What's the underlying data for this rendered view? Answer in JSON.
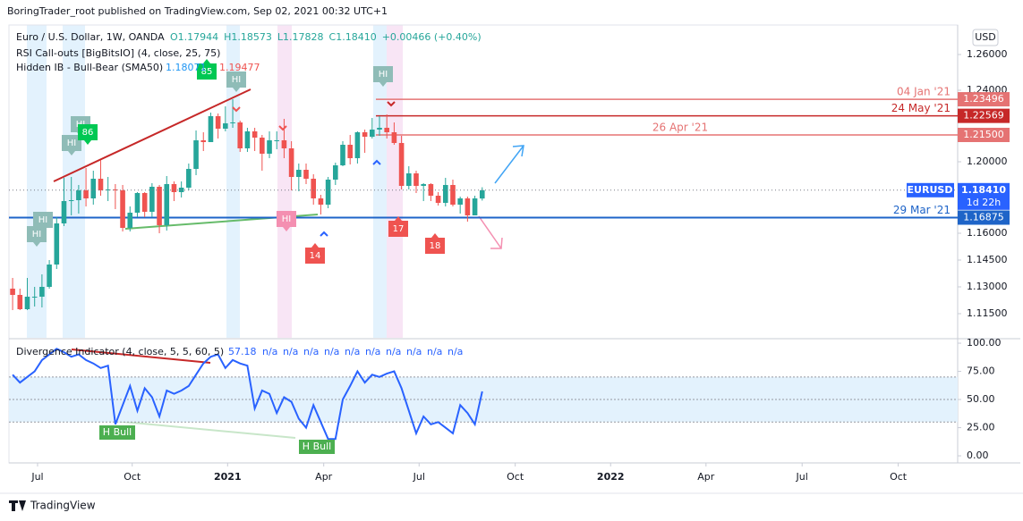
{
  "header": {
    "publisher": "BoringTrader_root published on TradingView.com, Sep 02, 2021 00:32 UTC+1",
    "symbol": "Euro / U.S. Dollar, 1W, OANDA",
    "ohlc": [
      "O1.17944",
      "H1.18573",
      "L1.17828",
      "C1.18410",
      "+0.00466 (+0.40%)"
    ],
    "indicator1": "RSI Call-outs [BigBitsIO] (4, close, 25, 75)",
    "indicator2": "Hidden IB - Bull-Bear (SMA50)",
    "indicator2_values": [
      "1.18071",
      "1.19477"
    ],
    "currency": "USD",
    "footer": "TradingView"
  },
  "chart_data": {
    "type": "candlestick",
    "open": [
      1.129,
      1.1255,
      1.1175,
      1.1245,
      1.1245,
      1.13,
      1.1425,
      1.1655,
      1.178,
      1.1785,
      1.184,
      1.1795,
      1.1905,
      1.184,
      1.1845,
      1.184,
      1.163,
      1.1715,
      1.1825,
      1.172,
      1.186,
      1.1645,
      1.1875,
      1.183,
      1.1855,
      1.196,
      1.212,
      1.211,
      1.2255,
      1.2185,
      1.2215,
      1.222,
      1.2075,
      1.217,
      1.2135,
      1.2045,
      1.212,
      1.212,
      1.2075,
      1.1915,
      1.1955,
      1.1905,
      1.1795,
      1.176,
      1.19,
      1.198,
      1.2095,
      1.202,
      1.2165,
      1.214,
      1.218,
      1.219,
      1.2165,
      1.2105,
      1.1865,
      1.1935,
      1.1865,
      1.1875,
      1.181,
      1.177,
      1.187,
      1.176,
      1.1795,
      1.17,
      1.17944
    ],
    "high": [
      1.135,
      1.129,
      1.135,
      1.13,
      1.137,
      1.145,
      1.169,
      1.191,
      1.1915,
      1.187,
      1.1965,
      1.195,
      1.201,
      1.1915,
      1.1875,
      1.187,
      1.175,
      1.183,
      1.183,
      1.188,
      1.187,
      1.192,
      1.189,
      1.189,
      1.199,
      1.2175,
      1.2165,
      1.2275,
      1.227,
      1.231,
      1.235,
      1.223,
      1.219,
      1.219,
      1.215,
      1.217,
      1.217,
      1.224,
      1.2115,
      1.199,
      1.199,
      1.193,
      1.1815,
      1.1915,
      1.1995,
      1.2115,
      1.215,
      1.217,
      1.218,
      1.2245,
      1.2255,
      1.2265,
      1.222,
      1.2145,
      1.1975,
      1.195,
      1.188,
      1.188,
      1.183,
      1.191,
      1.19,
      1.1805,
      1.1805,
      1.181,
      1.18573
    ],
    "low": [
      1.117,
      1.117,
      1.117,
      1.119,
      1.1185,
      1.129,
      1.14,
      1.164,
      1.17,
      1.171,
      1.175,
      1.176,
      1.181,
      1.178,
      1.1735,
      1.161,
      1.161,
      1.169,
      1.169,
      1.169,
      1.16,
      1.1615,
      1.178,
      1.18,
      1.184,
      1.1925,
      1.206,
      1.211,
      1.213,
      1.217,
      1.219,
      1.2055,
      1.2055,
      1.206,
      1.195,
      1.202,
      1.207,
      1.202,
      1.184,
      1.1835,
      1.1875,
      1.176,
      1.1705,
      1.174,
      1.187,
      1.1975,
      1.1985,
      1.199,
      1.205,
      1.213,
      1.2145,
      1.213,
      1.2095,
      1.1845,
      1.1845,
      1.1825,
      1.178,
      1.178,
      1.1755,
      1.175,
      1.175,
      1.171,
      1.1665,
      1.17,
      1.17828
    ],
    "close": [
      1.1255,
      1.1175,
      1.1245,
      1.1245,
      1.13,
      1.1425,
      1.1655,
      1.178,
      1.1785,
      1.184,
      1.1795,
      1.1905,
      1.184,
      1.1845,
      1.184,
      1.163,
      1.1715,
      1.1825,
      1.172,
      1.186,
      1.1645,
      1.1875,
      1.183,
      1.1855,
      1.196,
      1.212,
      1.211,
      1.2255,
      1.2185,
      1.2215,
      1.222,
      1.2075,
      1.217,
      1.2135,
      1.2045,
      1.212,
      1.212,
      1.2075,
      1.1915,
      1.1955,
      1.1905,
      1.1795,
      1.176,
      1.19,
      1.198,
      1.2095,
      1.202,
      1.2165,
      1.214,
      1.218,
      1.219,
      1.2165,
      1.2105,
      1.1865,
      1.1935,
      1.1865,
      1.1875,
      1.181,
      1.177,
      1.187,
      1.176,
      1.1795,
      1.17,
      1.1795,
      1.1841
    ],
    "up_color": "#26a69a",
    "down_color": "#ef5350",
    "ylim": [
      1.1015,
      1.2765
    ],
    "yticks": [
      {
        "value": 1.26,
        "label": "1.26000"
      },
      {
        "value": 1.24,
        "label": "1.24000"
      },
      {
        "value": 1.2,
        "label": "1.20000"
      },
      {
        "value": 1.16,
        "label": "1.16000"
      },
      {
        "value": 1.145,
        "label": "1.14500"
      },
      {
        "value": 1.13,
        "label": "1.13000"
      },
      {
        "value": 1.115,
        "label": "1.11500"
      }
    ],
    "xlim": [
      -0.5,
      128.8
    ],
    "xticks": [
      {
        "value": 3.4,
        "label": "Jul"
      },
      {
        "value": 16.3,
        "label": "Oct"
      },
      {
        "value": 29.3,
        "label": "2021"
      },
      {
        "value": 42.4,
        "label": "Apr"
      },
      {
        "value": 55.4,
        "label": "Jul"
      },
      {
        "value": 68.5,
        "label": "Oct"
      },
      {
        "value": 81.5,
        "label": "2022"
      },
      {
        "value": 94.5,
        "label": "Apr"
      },
      {
        "value": 107.6,
        "label": "Jul"
      },
      {
        "value": 120.7,
        "label": "Oct"
      }
    ],
    "levels": [
      {
        "label": "04 Jan '21",
        "value": 1.23496,
        "value_label": "1.23496",
        "color": "#e57373"
      },
      {
        "label": "24 May '21",
        "value": 1.22569,
        "value_label": "1.22569",
        "color": "#c62828"
      },
      {
        "label": "26 Apr '21",
        "value": 1.215,
        "value_label": "1.21500",
        "color": "#e57373"
      },
      {
        "label": "29 Mar '21",
        "value": 1.16875,
        "value_label": "1.16875",
        "color": "#1e64c8"
      }
    ],
    "last": {
      "name": "EURUSD",
      "value": 1.1841,
      "value_label": "1.18410",
      "countdown": "1d 22h",
      "color": "#2962ff"
    },
    "annotations": [
      {
        "label": "HI",
        "color": "#8fbcb7"
      },
      {
        "label": "HI",
        "color": "#8fbcb7"
      },
      {
        "label": "HI",
        "color": "#8fbcb7"
      },
      {
        "label": "HI",
        "color": "#8fbcb7"
      },
      {
        "label": "86",
        "color": "#00c853"
      },
      {
        "label": "85",
        "color": "#00c853"
      },
      {
        "label": "HI",
        "color": "#8fbcb7"
      },
      {
        "label": "HI",
        "color": "#f48fb1"
      },
      {
        "label": "14",
        "color": "#ef5350"
      },
      {
        "label": "HI",
        "color": "#8fbcb7"
      },
      {
        "label": "17",
        "color": "#ef5350"
      },
      {
        "label": "18",
        "color": "#ef5350"
      }
    ],
    "oscillator": {
      "title": "Divergence Indicator (4, close, 5, 5, 60, 5)",
      "color": "#2962ff",
      "values": [
        72,
        65,
        70,
        75,
        85,
        90,
        95,
        92,
        88,
        90,
        85,
        82,
        78,
        80,
        28,
        45,
        62,
        40,
        60,
        52,
        35,
        58,
        55,
        58,
        62,
        72,
        82,
        88,
        90,
        78,
        85,
        82,
        80,
        42,
        58,
        55,
        38,
        52,
        48,
        33,
        25,
        45,
        30,
        15,
        15,
        50,
        62,
        75,
        65,
        72,
        70,
        73,
        75,
        60,
        40,
        20,
        35,
        28,
        30,
        25,
        20,
        45,
        38,
        28,
        57.18
      ],
      "na": [
        "n/a",
        "n/a",
        "n/a",
        "n/a",
        "n/a",
        "n/a",
        "n/a",
        "n/a",
        "n/a",
        "n/a"
      ],
      "ylim": [
        -6.3,
        103.2
      ],
      "yticks": [
        {
          "value": 100,
          "label": "100.00"
        },
        {
          "value": 75,
          "label": "75.00"
        },
        {
          "value": 50,
          "label": "50.00"
        },
        {
          "value": 25,
          "label": "25.00"
        },
        {
          "value": 0,
          "label": "0.00"
        }
      ],
      "levels": [
        70,
        50,
        30
      ],
      "annotations": [
        "H Bull",
        "H Bull"
      ]
    }
  }
}
